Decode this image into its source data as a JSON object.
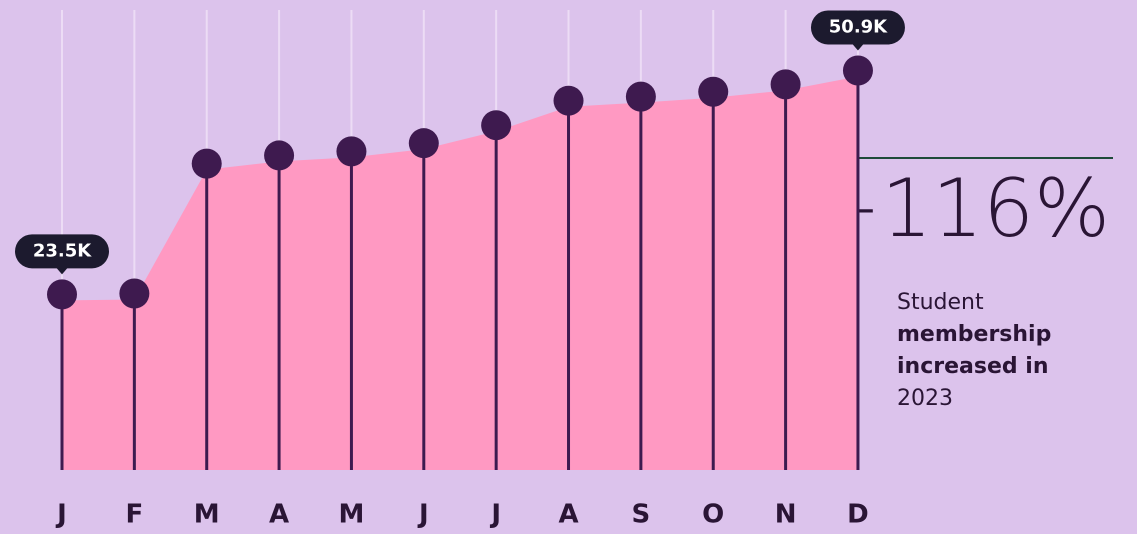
{
  "chart_data": {
    "type": "area",
    "categories": [
      "J",
      "F",
      "M",
      "A",
      "M",
      "J",
      "J",
      "A",
      "S",
      "O",
      "N",
      "D"
    ],
    "series": [
      {
        "name": "Student membership",
        "color": "#ff99c2",
        "values": [
          23500,
          23600,
          39500,
          40500,
          41000,
          42000,
          44200,
          47200,
          47700,
          48300,
          49200,
          50900
        ],
        "value_labels": [
          "23.5K",
          null,
          null,
          null,
          null,
          null,
          null,
          null,
          null,
          null,
          null,
          "50.9K"
        ]
      }
    ],
    "marker_color": "#3e1a4f",
    "ylim": [
      2000,
      58300
    ],
    "annotation": "+116%",
    "note": [
      "Student",
      "membership",
      "increased in",
      "2023"
    ],
    "note_bold": [
      false,
      true,
      true,
      false
    ]
  }
}
